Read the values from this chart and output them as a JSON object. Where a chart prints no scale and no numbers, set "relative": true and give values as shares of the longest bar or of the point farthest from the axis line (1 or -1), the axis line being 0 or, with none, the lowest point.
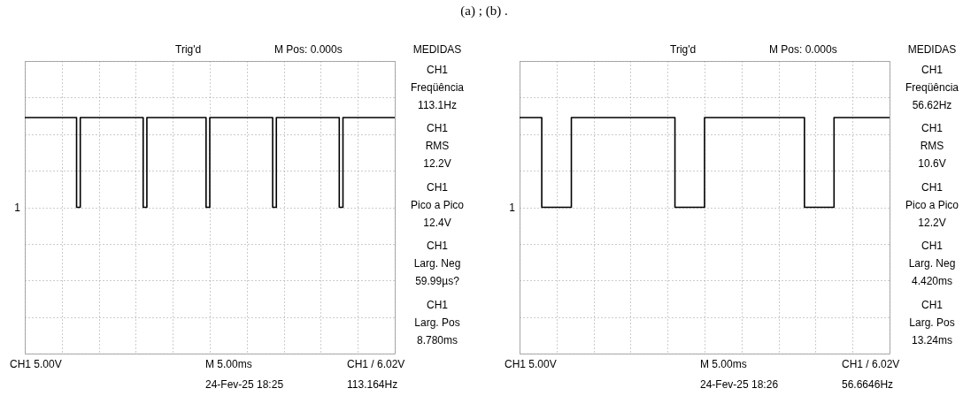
{
  "chart_data": [
    {
      "type": "step",
      "relative": true,
      "grid": true,
      "categories": [
        null,
        null,
        null,
        null,
        null,
        null,
        null,
        null,
        null,
        null,
        null,
        null,
        null,
        null,
        null,
        null,
        null,
        null,
        null,
        null,
        null,
        null,
        null,
        null,
        null,
        null,
        null,
        null,
        null,
        null,
        null,
        null,
        null,
        null,
        null,
        null,
        null,
        null,
        null,
        null,
        null,
        null,
        null,
        null,
        null,
        null,
        null,
        null,
        null,
        null,
        null,
        null,
        null,
        null,
        null,
        null,
        null,
        null,
        null,
        null,
        null,
        null,
        null,
        null,
        null,
        null,
        null,
        null,
        null,
        null,
        null,
        null,
        null,
        null,
        null,
        null,
        null,
        null,
        null,
        null,
        null,
        null,
        null,
        null,
        null,
        null,
        null,
        null,
        null,
        null,
        null,
        null,
        null,
        null,
        null,
        null,
        null,
        null,
        null,
        null,
        null
      ],
      "series": [
        {
          "color": "#000000",
          "values": [
            1,
            1,
            1,
            1,
            1,
            1,
            1,
            1,
            1,
            1,
            1,
            1,
            1,
            1,
            0,
            1,
            1,
            1,
            1,
            1,
            1,
            1,
            1,
            1,
            1,
            1,
            1,
            1,
            1,
            1,
            1,
            1,
            0,
            1,
            1,
            1,
            1,
            1,
            1,
            1,
            1,
            1,
            1,
            1,
            1,
            1,
            1,
            1,
            1,
            0,
            1,
            1,
            1,
            1,
            1,
            1,
            1,
            1,
            1,
            1,
            1,
            1,
            1,
            1,
            1,
            1,
            1,
            0,
            1,
            1,
            1,
            1,
            1,
            1,
            1,
            1,
            1,
            1,
            1,
            1,
            1,
            1,
            1,
            1,
            1,
            0,
            1,
            1,
            1,
            1,
            1,
            1,
            1,
            1,
            1,
            1,
            1,
            1,
            1,
            1,
            1
          ]
        }
      ],
      "annotations": [
        "Trig'd",
        "M Pos: 0.000s",
        "MEDIDAS",
        "CH1\nFreqüência\n113.1Hz",
        "CH1\nRMS\n12.2V",
        "CH1\nPico a Pico\n12.4V",
        "CH1\nLarg. Neg\n59.99µs?",
        "CH1\nLarg. Pos\n8.780ms",
        "CH1  5.00V",
        "M 5.00ms",
        "CH1 / 6.02V",
        "24-Fev-25 18:25",
        "113.164Hz",
        "1",
        "(a) ; (b) ."
      ]
    },
    {
      "type": "step",
      "relative": true,
      "grid": true,
      "categories": [
        null,
        null,
        null,
        null,
        null,
        null,
        null,
        null,
        null,
        null,
        null,
        null,
        null,
        null,
        null,
        null,
        null,
        null,
        null,
        null,
        null,
        null,
        null,
        null,
        null,
        null,
        null,
        null,
        null,
        null,
        null,
        null,
        null,
        null,
        null,
        null,
        null,
        null,
        null,
        null,
        null,
        null,
        null,
        null,
        null,
        null,
        null,
        null,
        null,
        null,
        null,
        null,
        null,
        null,
        null,
        null,
        null,
        null,
        null,
        null,
        null,
        null,
        null,
        null,
        null,
        null,
        null,
        null,
        null,
        null,
        null,
        null,
        null,
        null,
        null,
        null,
        null,
        null,
        null,
        null,
        null,
        null,
        null,
        null,
        null,
        null,
        null,
        null,
        null,
        null,
        null,
        null,
        null,
        null,
        null,
        null,
        null,
        null,
        null,
        null,
        null
      ],
      "series": [
        {
          "color": "#000000",
          "values": [
            1,
            1,
            1,
            1,
            1,
            1,
            0,
            0,
            0,
            0,
            0,
            0,
            0,
            0,
            1,
            1,
            1,
            1,
            1,
            1,
            1,
            1,
            1,
            1,
            1,
            1,
            1,
            1,
            1,
            1,
            1,
            1,
            1,
            1,
            1,
            1,
            1,
            1,
            1,
            1,
            1,
            1,
            0,
            0,
            0,
            0,
            0,
            0,
            0,
            0,
            1,
            1,
            1,
            1,
            1,
            1,
            1,
            1,
            1,
            1,
            1,
            1,
            1,
            1,
            1,
            1,
            1,
            1,
            1,
            1,
            1,
            1,
            1,
            1,
            1,
            1,
            1,
            0,
            0,
            0,
            0,
            0,
            0,
            0,
            0,
            1,
            1,
            1,
            1,
            1,
            1,
            1,
            1,
            1,
            1,
            1,
            1,
            1,
            1,
            1,
            1
          ]
        }
      ],
      "annotations": [
        "Trig'd",
        "M Pos: 0.000s",
        "MEDIDAS",
        "CH1\nFreqüência\n56.62Hz",
        "CH1\nRMS\n10.6V",
        "CH1\nPico a Pico\n12.2V",
        "CH1\nLarg. Neg\n4.420ms",
        "CH1\nLarg. Pos\n13.24ms",
        "CH1  5.00V",
        "M 5.00ms",
        "CH1 / 6.02V",
        "24-Fev-25 18:26",
        "56.6646Hz",
        "1"
      ]
    }
  ]
}
